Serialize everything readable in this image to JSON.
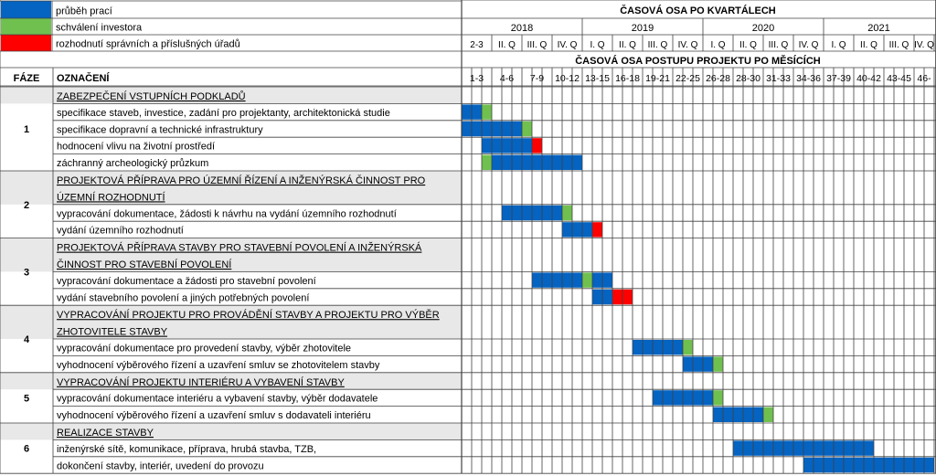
{
  "legend": [
    {
      "label": "průběh prací",
      "color": "#0563C1"
    },
    {
      "label": "schválení investora",
      "color": "#70C050"
    },
    {
      "label": "rozhodnutí správních a příslušných úřadů",
      "color": "#FF0000"
    }
  ],
  "header": {
    "quarter_title": "ČASOVÁ OSA PO KVARTÁLECH",
    "month_title": "ČASOVÁ OSA POSTUPU PROJEKTU PO MĚSÍCÍCH",
    "col_phase": "FÁZE",
    "col_label": "OZNAČENÍ"
  },
  "years": [
    {
      "label": "2018",
      "span": 4
    },
    {
      "label": "2019",
      "span": 4
    },
    {
      "label": "2020",
      "span": 4
    },
    {
      "label": "2021",
      "span": 4
    }
  ],
  "quarters": [
    "2-3",
    "II. Q",
    "III. Q",
    "IV. Q",
    "I. Q",
    "II. Q",
    "III. Q",
    "IV. Q",
    "I. Q",
    "II. Q",
    "III. Q",
    "IV. Q",
    "I. Q",
    "II. Q",
    "III. Q",
    "IV. Q"
  ],
  "month_groups": [
    "1-3",
    "4-6",
    "7-9",
    "10-12",
    "13-15",
    "16-18",
    "19-21",
    "22-25",
    "26-28",
    "28-30",
    "31-33",
    "34-36",
    "37-39",
    "40-42",
    "43-45",
    "46-"
  ],
  "chart_data": {
    "type": "gantt",
    "time_unit": "month",
    "status_colors": {
      "work": "#0563C1",
      "approval": "#70C050",
      "decision": "#FF0000"
    },
    "rows": [
      {
        "phase": "1",
        "label": "ZABEZPEČENÍ VSTUPNÍCH PODKLADŮ",
        "kind": "header",
        "lines": 1
      },
      {
        "label": "specifikace staveb, investice, zadání pro projektanty, architektonická studie",
        "bars": [
          {
            "start": 0,
            "end": 2,
            "status": "work"
          },
          {
            "start": 2,
            "end": 3,
            "status": "approval"
          }
        ]
      },
      {
        "label": "specifikace dopravní a technické infrastruktury",
        "bars": [
          {
            "start": 0,
            "end": 6,
            "status": "work"
          },
          {
            "start": 6,
            "end": 7,
            "status": "approval"
          }
        ]
      },
      {
        "label": "hodnocení vlivu na životní prostředí",
        "bars": [
          {
            "start": 2,
            "end": 7,
            "status": "work"
          },
          {
            "start": 7,
            "end": 8,
            "status": "decision"
          }
        ]
      },
      {
        "label": "záchranný archeologický průzkum",
        "bars": [
          {
            "start": 2,
            "end": 3,
            "status": "approval"
          },
          {
            "start": 3,
            "end": 12,
            "status": "work"
          }
        ]
      },
      {
        "phase": "2",
        "label": "PROJEKTOVÁ PŘÍPRAVA PRO ÚZEMNÍ ŘÍZENÍ A INŽENÝRSKÁ ČINNOST PRO",
        "label2": "ÚZEMNÍ ROZHODNUTÍ",
        "kind": "header",
        "lines": 2
      },
      {
        "label": "vypracování dokumentace, žádosti k návrhu na vydání územního rozhodnutí",
        "bars": [
          {
            "start": 4,
            "end": 10,
            "status": "work"
          },
          {
            "start": 10,
            "end": 11,
            "status": "approval"
          }
        ]
      },
      {
        "label": "vydání územního rozhodnutí",
        "bars": [
          {
            "start": 10,
            "end": 13,
            "status": "work"
          },
          {
            "start": 13,
            "end": 14,
            "status": "decision"
          }
        ]
      },
      {
        "phase": "3",
        "label": "PROJEKTOVÁ PŘÍPRAVA STAVBY PRO STAVEBNÍ POVOLENÍ A INŽENÝRSKÁ",
        "label2": "ČINNOST PRO STAVEBNÍ POVOLENÍ",
        "kind": "header",
        "lines": 2
      },
      {
        "label": "vypracování dokumentace a žádosti pro stavební povolení",
        "bars": [
          {
            "start": 7,
            "end": 12,
            "status": "work"
          },
          {
            "start": 12,
            "end": 13,
            "status": "approval"
          },
          {
            "start": 13,
            "end": 15,
            "status": "work"
          }
        ]
      },
      {
        "label": "vydání stavebního povolení a jiných potřebných povolení",
        "bars": [
          {
            "start": 13,
            "end": 15,
            "status": "work"
          },
          {
            "start": 15,
            "end": 17,
            "status": "decision"
          }
        ]
      },
      {
        "phase": "4",
        "label": "VYPRACOVÁNÍ PROJEKTU PRO PROVÁDĚNÍ STAVBY A PROJEKTU PRO VÝBĚR",
        "label2": "ZHOTOVITELE STAVBY",
        "kind": "header",
        "lines": 2
      },
      {
        "label": "vypracování dokumentace pro provedení stavby, výběr zhotovitele",
        "bars": [
          {
            "start": 17,
            "end": 22,
            "status": "work"
          },
          {
            "start": 22,
            "end": 23,
            "status": "approval"
          }
        ]
      },
      {
        "label": "vyhodnocení výběrového řízení a uzavření smluv se zhotovitelem stavby",
        "bars": [
          {
            "start": 22,
            "end": 25,
            "status": "work"
          },
          {
            "start": 25,
            "end": 26,
            "status": "approval"
          }
        ]
      },
      {
        "phase": "5",
        "label": "VYPRACOVÁNÍ PROJEKTU INTERIÉRU A VYBAVENÍ STAVBY",
        "kind": "header",
        "lines": 1
      },
      {
        "label": "vypracování dokumentace interiéru a vybavení stavby, výběr dodavatele",
        "bars": [
          {
            "start": 19,
            "end": 25,
            "status": "work"
          },
          {
            "start": 25,
            "end": 26,
            "status": "approval"
          }
        ]
      },
      {
        "label": "vyhodnocení výběrového řízení a uzavření smluv s dodavateli interiéru",
        "bars": [
          {
            "start": 25,
            "end": 30,
            "status": "work"
          },
          {
            "start": 30,
            "end": 31,
            "status": "approval"
          }
        ]
      },
      {
        "phase": "6",
        "label": "REALIZACE STAVBY",
        "kind": "header",
        "lines": 1
      },
      {
        "label": "inženýrské sítě, komunikace, příprava, hrubá stavba, TZB,",
        "bars": [
          {
            "start": 27,
            "end": 41,
            "status": "work"
          }
        ]
      },
      {
        "label": "dokončení stavby, interiér, uvedení do provozu",
        "bars": [
          {
            "start": 34,
            "end": 47,
            "status": "work"
          }
        ]
      }
    ]
  }
}
